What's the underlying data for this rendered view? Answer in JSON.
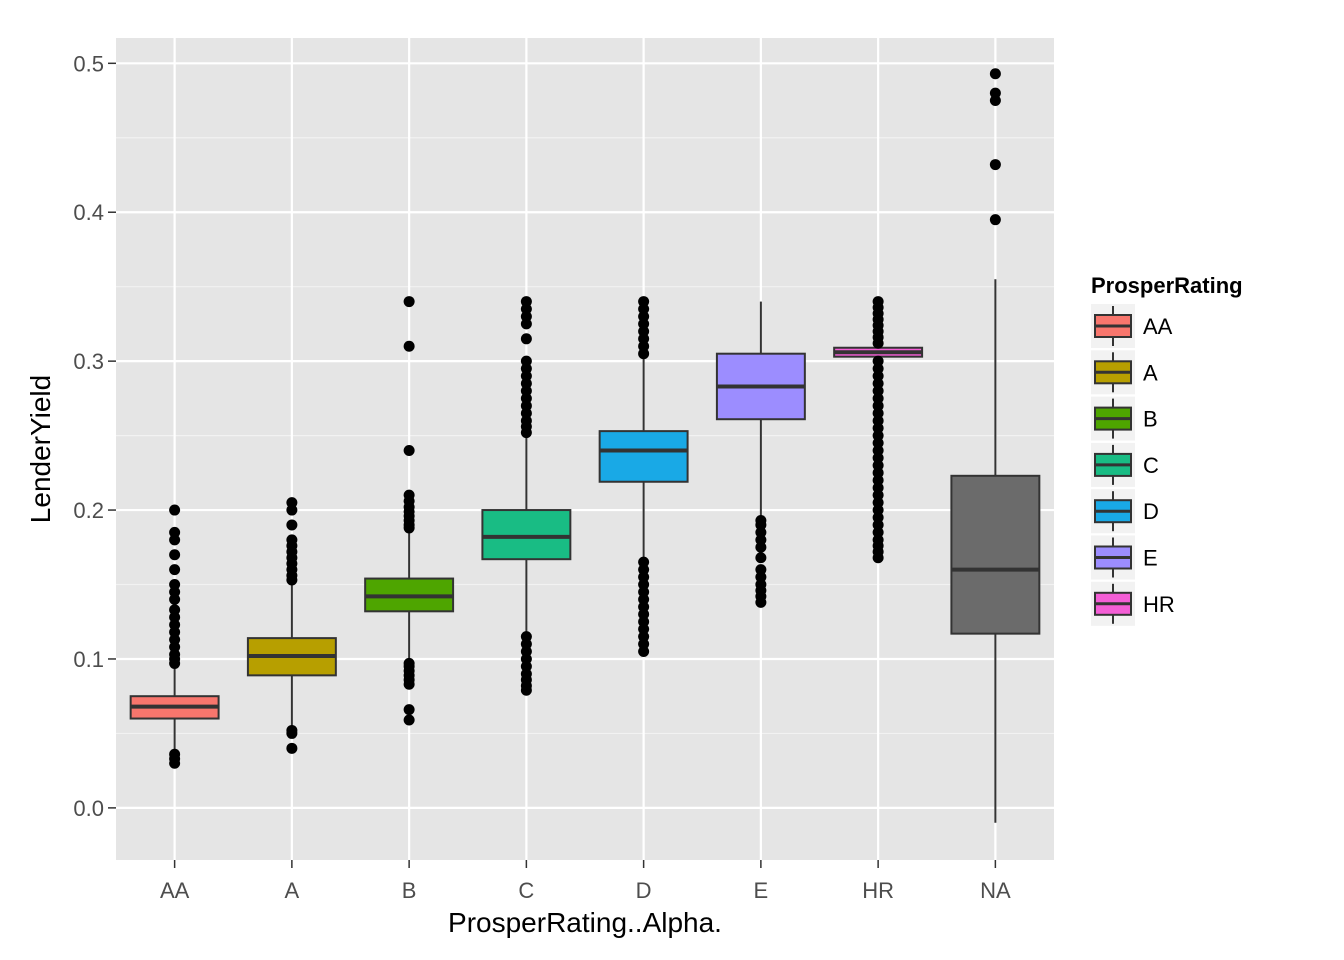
{
  "chart_data": {
    "type": "box",
    "xlabel": "ProsperRating..Alpha.",
    "ylabel": "LenderYield",
    "categories": [
      "AA",
      "A",
      "B",
      "C",
      "D",
      "E",
      "HR",
      "NA"
    ],
    "ylim": [
      -0.035,
      0.517
    ],
    "yticks": [
      0.0,
      0.1,
      0.2,
      0.3,
      0.4,
      0.5
    ],
    "ytick_labels": [
      "0.0",
      "0.1",
      "0.2",
      "0.3",
      "0.4",
      "0.5"
    ],
    "grid": true,
    "legend": {
      "title": "ProsperRating",
      "position": "right",
      "entries": [
        "AA",
        "A",
        "B",
        "C",
        "D",
        "E",
        "HR"
      ]
    },
    "series": [
      {
        "category": "AA",
        "color": "#F8766D",
        "min": 0.036,
        "q1": 0.06,
        "median": 0.068,
        "q3": 0.075,
        "max": 0.096,
        "outliers": [
          0.03,
          0.033,
          0.036,
          0.097,
          0.1,
          0.103,
          0.108,
          0.113,
          0.118,
          0.123,
          0.128,
          0.133,
          0.14,
          0.145,
          0.15,
          0.16,
          0.17,
          0.18,
          0.185,
          0.2
        ]
      },
      {
        "category": "A",
        "color": "#B79F00",
        "min": 0.052,
        "q1": 0.089,
        "median": 0.102,
        "q3": 0.114,
        "max": 0.151,
        "outliers": [
          0.04,
          0.05,
          0.052,
          0.153,
          0.156,
          0.16,
          0.164,
          0.168,
          0.172,
          0.176,
          0.18,
          0.19,
          0.2,
          0.205
        ]
      },
      {
        "category": "B",
        "color": "#4EA500",
        "min": 0.098,
        "q1": 0.132,
        "median": 0.142,
        "q3": 0.154,
        "max": 0.186,
        "outliers": [
          0.059,
          0.066,
          0.083,
          0.086,
          0.089,
          0.092,
          0.095,
          0.097,
          0.188,
          0.19,
          0.193,
          0.196,
          0.199,
          0.202,
          0.206,
          0.21,
          0.24,
          0.31,
          0.34
        ]
      },
      {
        "category": "C",
        "color": "#19BC84",
        "min": 0.117,
        "q1": 0.167,
        "median": 0.182,
        "q3": 0.2,
        "max": 0.25,
        "outliers": [
          0.079,
          0.082,
          0.086,
          0.09,
          0.095,
          0.1,
          0.105,
          0.11,
          0.115,
          0.252,
          0.256,
          0.26,
          0.265,
          0.27,
          0.275,
          0.28,
          0.285,
          0.29,
          0.295,
          0.3,
          0.315,
          0.325,
          0.33,
          0.335,
          0.34
        ]
      },
      {
        "category": "D",
        "color": "#19A9E6",
        "min": 0.167,
        "q1": 0.219,
        "median": 0.24,
        "q3": 0.253,
        "max": 0.303,
        "outliers": [
          0.105,
          0.11,
          0.115,
          0.12,
          0.125,
          0.13,
          0.135,
          0.14,
          0.145,
          0.15,
          0.155,
          0.16,
          0.165,
          0.305,
          0.31,
          0.315,
          0.32,
          0.325,
          0.33,
          0.335,
          0.34
        ]
      },
      {
        "category": "E",
        "color": "#9C8DFF",
        "min": 0.195,
        "q1": 0.261,
        "median": 0.283,
        "q3": 0.305,
        "max": 0.34,
        "outliers": [
          0.138,
          0.142,
          0.146,
          0.15,
          0.155,
          0.16,
          0.168,
          0.175,
          0.18,
          0.185,
          0.19,
          0.193
        ]
      },
      {
        "category": "HR",
        "color": "#F45ED6",
        "min": 0.302,
        "q1": 0.303,
        "median": 0.306,
        "q3": 0.309,
        "max": 0.31,
        "outliers": [
          0.168,
          0.172,
          0.176,
          0.18,
          0.185,
          0.19,
          0.195,
          0.2,
          0.205,
          0.21,
          0.215,
          0.22,
          0.225,
          0.23,
          0.235,
          0.24,
          0.245,
          0.25,
          0.255,
          0.26,
          0.265,
          0.27,
          0.275,
          0.28,
          0.285,
          0.29,
          0.295,
          0.3,
          0.312,
          0.316,
          0.32,
          0.324,
          0.328,
          0.332,
          0.336,
          0.34
        ]
      },
      {
        "category": "NA",
        "color": "#6B6B6B",
        "min": -0.01,
        "q1": 0.117,
        "median": 0.16,
        "q3": 0.223,
        "max": 0.355,
        "outliers": [
          0.395,
          0.432,
          0.475,
          0.48,
          0.493
        ]
      }
    ]
  }
}
